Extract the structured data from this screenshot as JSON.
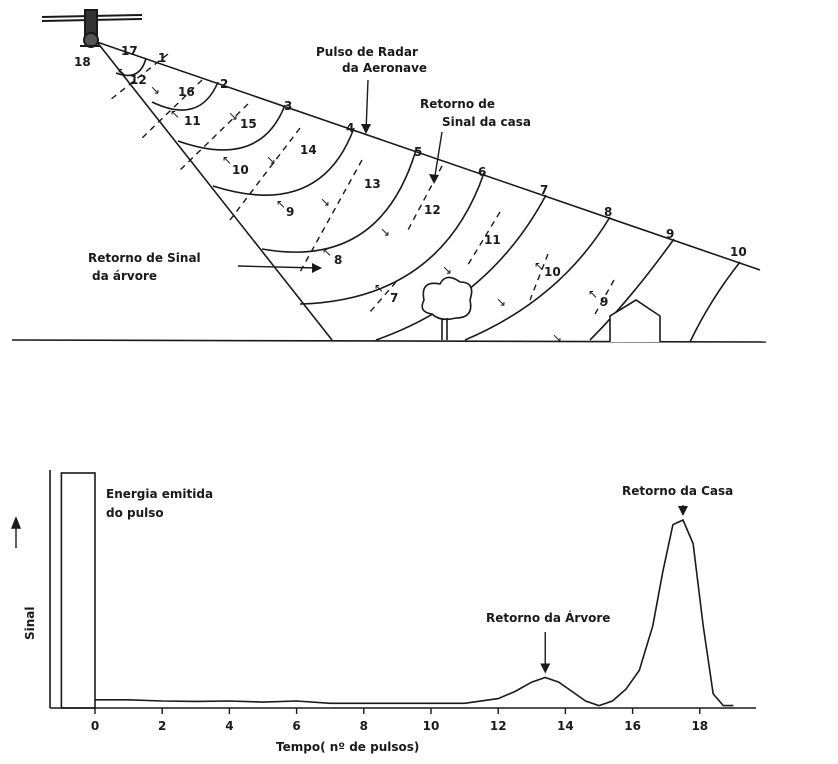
{
  "diagram": {
    "pulse_numbers": [
      "17",
      "1",
      "2",
      "3",
      "4",
      "5",
      "6",
      "7",
      "8",
      "9",
      "10"
    ],
    "return_numbers": [
      "16",
      "12",
      "16",
      "11",
      "15",
      "10",
      "14",
      "9",
      "13",
      "12",
      "8",
      "11",
      "7",
      "10",
      "9"
    ],
    "aircraft_label": "18",
    "labels": {
      "aircraft_pulse": [
        "Pulso de Radar",
        "da Aeronave"
      ],
      "house_return": [
        "Retorno de",
        "Sinal da casa"
      ],
      "tree_return": [
        "Retorno de Sinal",
        "da árvore"
      ]
    }
  },
  "chart_data": {
    "type": "line",
    "xlabel": "Tempo( nº de pulsos)",
    "ylabel": "Sinal",
    "x_ticks": [
      0,
      2,
      4,
      6,
      8,
      10,
      12,
      14,
      16,
      18
    ],
    "xlim": [
      -1.8,
      19
    ],
    "ylim": [
      0,
      1
    ],
    "emitted_pulse": {
      "x_start": -1,
      "x_end": 0,
      "height": 1.0,
      "label": [
        "Energia emitida",
        "do pulso"
      ]
    },
    "series": [
      {
        "x": [
          0,
          0.5,
          1,
          2,
          3,
          4,
          5,
          6,
          7,
          8,
          9,
          10,
          11,
          12,
          12.5,
          13,
          13.4,
          13.8,
          14.2,
          14.6,
          15,
          15.4,
          15.8,
          16.2,
          16.6,
          16.9,
          17.2,
          17.5,
          17.8,
          18.1,
          18.4,
          18.7,
          19
        ],
        "y": [
          0.035,
          0.035,
          0.035,
          0.03,
          0.028,
          0.03,
          0.025,
          0.03,
          0.02,
          0.02,
          0.02,
          0.02,
          0.02,
          0.04,
          0.07,
          0.11,
          0.13,
          0.11,
          0.07,
          0.03,
          0.01,
          0.03,
          0.08,
          0.16,
          0.35,
          0.58,
          0.78,
          0.8,
          0.7,
          0.35,
          0.06,
          0.01,
          0.01
        ]
      }
    ],
    "annotations": [
      {
        "text": "Retorno da Árvore",
        "x": 13.4
      },
      {
        "text": "Retorno da Casa",
        "x": 17.5
      }
    ]
  }
}
